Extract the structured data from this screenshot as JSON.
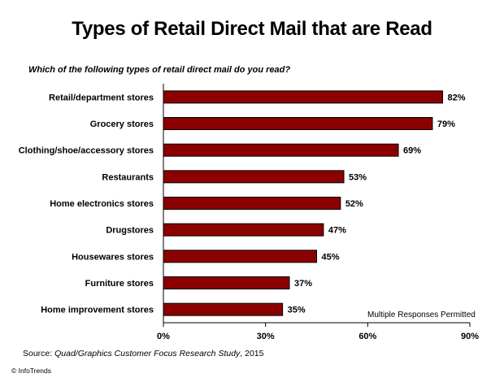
{
  "title": "Types of Retail Direct Mail that are Read",
  "question": "Which of the following types of retail direct mail do you read?",
  "note": "Multiple Responses Permitted",
  "source": {
    "prefix": "Source: ",
    "study": "Quad/Graphics Customer Focus Research Study",
    "suffix": ", 2015"
  },
  "copyright": "© InfoTrends",
  "colors": {
    "bar": "#8b0000",
    "bar_border": "#000000"
  },
  "chart_data": {
    "type": "bar",
    "orientation": "horizontal",
    "categories": [
      "Retail/department stores",
      "Grocery stores",
      "Clothing/shoe/accessory stores",
      "Restaurants",
      "Home electronics stores",
      "Drugstores",
      "Housewares stores",
      "Furniture stores",
      "Home improvement stores"
    ],
    "values": [
      82,
      79,
      69,
      53,
      52,
      47,
      45,
      37,
      35
    ],
    "value_labels": [
      "82%",
      "79%",
      "69%",
      "53%",
      "52%",
      "47%",
      "45%",
      "37%",
      "35%"
    ],
    "xlim": [
      0,
      90
    ],
    "xticks": [
      0,
      30,
      60,
      90
    ],
    "xtick_labels": [
      "0%",
      "30%",
      "60%",
      "90%"
    ],
    "grid": false,
    "title": "Types of Retail Direct Mail that are Read"
  }
}
